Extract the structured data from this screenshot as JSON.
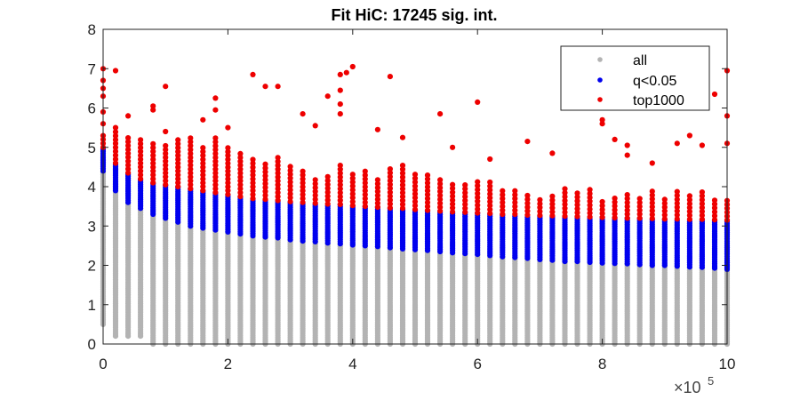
{
  "chart_data": {
    "type": "scatter",
    "title": "Fit HiC: 17245 sig. int.",
    "xlabel": "",
    "ylabel": "",
    "x_exponent_label": "×10",
    "x_exponent_power": "5",
    "xlim": [
      0,
      1000000
    ],
    "ylim": [
      0,
      8
    ],
    "x_ticks": [
      0,
      200000,
      400000,
      600000,
      800000,
      1000000
    ],
    "x_tick_labels": [
      "0",
      "2",
      "4",
      "6",
      "8",
      "10"
    ],
    "y_ticks": [
      0,
      1,
      2,
      3,
      4,
      5,
      6,
      7,
      8
    ],
    "y_tick_labels": [
      "0",
      "1",
      "2",
      "3",
      "4",
      "5",
      "6",
      "7",
      "8"
    ],
    "grid": false,
    "legend_position": "top-right",
    "series": [
      {
        "name": "all",
        "color": "#b3b3b3",
        "columns_x_start": 0,
        "columns_x_step": 20000,
        "columns_count": 51,
        "min_values": [
          0.5,
          0.2,
          0.2,
          0.2,
          0.0,
          0.0,
          0.0,
          0.0,
          0.0,
          0.0,
          0.0,
          0.0,
          0.0,
          0.0,
          0.0,
          0.0,
          0.0,
          0.0,
          0.0,
          0.0,
          0.0,
          0.0,
          0.0,
          0.0,
          0.0,
          0.0,
          0.0,
          0.0,
          0.0,
          0.0,
          0.0,
          0.0,
          0.0,
          0.0,
          0.0,
          0.0,
          0.0,
          0.0,
          0.0,
          0.0,
          0.0,
          0.0,
          0.0,
          0.0,
          0.0,
          0.0,
          0.0,
          0.0,
          0.0,
          0.0,
          0.0
        ]
      },
      {
        "name": "q<0.05",
        "color": "#0000ee",
        "lower_values": [
          4.4,
          3.9,
          3.6,
          3.45,
          3.3,
          3.2,
          3.1,
          3.0,
          2.95,
          2.9,
          2.85,
          2.8,
          2.75,
          2.72,
          2.7,
          2.65,
          2.62,
          2.6,
          2.57,
          2.55,
          2.52,
          2.5,
          2.48,
          2.45,
          2.42,
          2.4,
          2.38,
          2.35,
          2.32,
          2.3,
          2.28,
          2.25,
          2.22,
          2.2,
          2.18,
          2.15,
          2.13,
          2.1,
          2.1,
          2.08,
          2.06,
          2.05,
          2.04,
          2.02,
          2.0,
          2.0,
          1.98,
          1.96,
          1.95,
          1.93,
          1.9
        ],
        "upper_values": [
          5.0,
          4.6,
          4.35,
          4.2,
          4.1,
          4.05,
          4.0,
          3.95,
          3.9,
          3.85,
          3.8,
          3.75,
          3.7,
          3.68,
          3.65,
          3.62,
          3.6,
          3.58,
          3.56,
          3.55,
          3.52,
          3.5,
          3.48,
          3.46,
          3.45,
          3.42,
          3.4,
          3.38,
          3.36,
          3.35,
          3.33,
          3.32,
          3.3,
          3.3,
          3.28,
          3.27,
          3.26,
          3.25,
          3.24,
          3.23,
          3.22,
          3.21,
          3.2,
          3.2,
          3.19,
          3.18,
          3.18,
          3.17,
          3.17,
          3.16,
          3.15
        ]
      },
      {
        "name": "top1000",
        "color": "#ee0000",
        "upper_values": [
          5.35,
          5.45,
          5.3,
          5.2,
          5.1,
          5.05,
          5.2,
          5.3,
          5.0,
          5.3,
          5.0,
          4.9,
          4.7,
          4.6,
          4.75,
          4.6,
          4.45,
          4.2,
          4.3,
          4.55,
          4.35,
          4.4,
          4.25,
          4.5,
          4.6,
          4.4,
          4.3,
          4.2,
          4.1,
          4.05,
          4.15,
          4.15,
          3.9,
          3.9,
          3.8,
          3.75,
          3.8,
          3.95,
          3.9,
          4.0,
          3.7,
          3.8,
          3.85,
          3.75,
          3.9,
          3.75,
          3.9,
          3.85,
          3.95,
          3.7,
          3.7
        ],
        "outliers": [
          [
            0,
            7.0
          ],
          [
            0,
            6.7
          ],
          [
            0,
            6.5
          ],
          [
            0,
            6.3
          ],
          [
            0,
            5.9
          ],
          [
            0,
            5.6
          ],
          [
            20000,
            6.95
          ],
          [
            20000,
            5.5
          ],
          [
            40000,
            5.8
          ],
          [
            80000,
            6.05
          ],
          [
            80000,
            5.95
          ],
          [
            100000,
            6.55
          ],
          [
            100000,
            5.4
          ],
          [
            160000,
            5.7
          ],
          [
            180000,
            6.25
          ],
          [
            180000,
            5.95
          ],
          [
            200000,
            5.5
          ],
          [
            240000,
            6.85
          ],
          [
            260000,
            6.55
          ],
          [
            280000,
            6.55
          ],
          [
            320000,
            5.85
          ],
          [
            340000,
            5.55
          ],
          [
            360000,
            6.3
          ],
          [
            380000,
            6.85
          ],
          [
            380000,
            6.45
          ],
          [
            380000,
            6.1
          ],
          [
            380000,
            5.85
          ],
          [
            390000,
            6.9
          ],
          [
            400000,
            7.05
          ],
          [
            440000,
            5.45
          ],
          [
            460000,
            6.8
          ],
          [
            480000,
            5.25
          ],
          [
            540000,
            5.85
          ],
          [
            560000,
            5.0
          ],
          [
            600000,
            6.15
          ],
          [
            620000,
            4.7
          ],
          [
            680000,
            5.15
          ],
          [
            720000,
            4.85
          ],
          [
            800000,
            5.7
          ],
          [
            800000,
            5.6
          ],
          [
            820000,
            5.2
          ],
          [
            840000,
            5.05
          ],
          [
            840000,
            4.8
          ],
          [
            880000,
            4.6
          ],
          [
            920000,
            5.1
          ],
          [
            940000,
            5.3
          ],
          [
            960000,
            5.05
          ],
          [
            980000,
            6.35
          ],
          [
            1000000,
            6.95
          ],
          [
            1000000,
            5.8
          ],
          [
            1000000,
            5.1
          ]
        ]
      }
    ]
  }
}
